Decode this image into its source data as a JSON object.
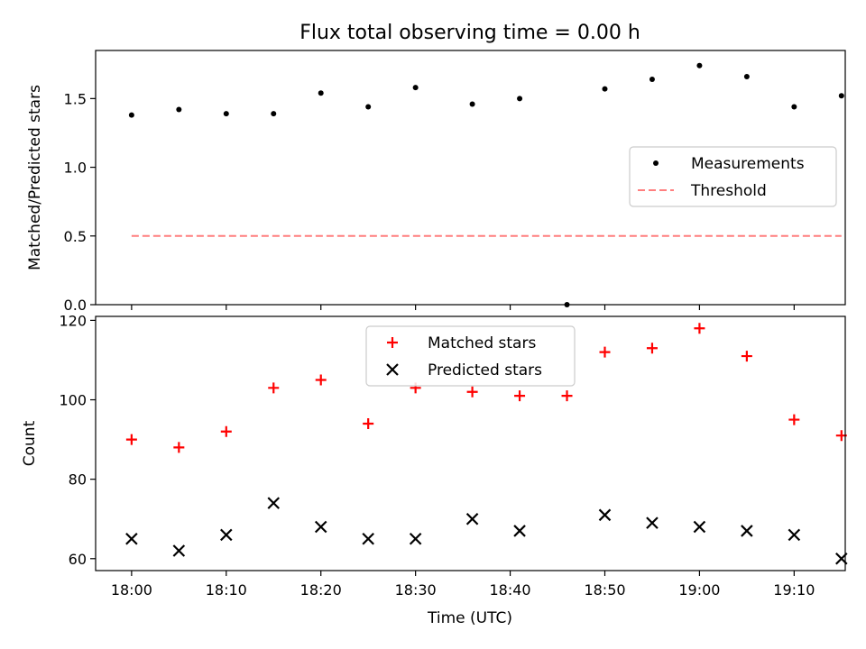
{
  "figure": {
    "title": "Flux total observing time = 0.00 h",
    "xlabel": "Time (UTC)",
    "xticks": [
      "18:00",
      "18:10",
      "18:20",
      "18:30",
      "18:40",
      "18:50",
      "19:00",
      "19:10"
    ]
  },
  "chart_data": [
    {
      "type": "scatter",
      "title": "Flux total observing time = 0.00 h",
      "ylabel": "Matched/Predicted stars",
      "ylim": [
        0.0,
        1.85
      ],
      "yticks": [
        "0.0",
        "0.5",
        "1.0",
        "1.5"
      ],
      "xlim_minutes": [
        -3.8,
        75.4
      ],
      "legend_position": "center-right",
      "series": [
        {
          "name": "Measurements",
          "kind": "scatter",
          "color": "#000000",
          "x": [
            "18:00",
            "18:05",
            "18:10",
            "18:15",
            "18:20",
            "18:25",
            "18:30",
            "18:36",
            "18:41",
            "18:46",
            "18:50",
            "18:55",
            "19:00",
            "19:05",
            "19:10",
            "19:15"
          ],
          "y": [
            1.38,
            1.42,
            1.39,
            1.39,
            1.54,
            1.44,
            1.58,
            1.46,
            1.5,
            0.0,
            1.57,
            1.64,
            1.74,
            1.66,
            1.44,
            1.52
          ]
        },
        {
          "name": "Threshold",
          "kind": "dashed-line",
          "color": "#ff7f7f",
          "x": [
            "18:00",
            "19:15"
          ],
          "y": [
            0.5,
            0.5
          ]
        }
      ]
    },
    {
      "type": "scatter",
      "xlabel": "Time (UTC)",
      "ylabel": "Count",
      "ylim": [
        57,
        121
      ],
      "yticks": [
        "60",
        "80",
        "100",
        "120"
      ],
      "xticks": [
        "18:00",
        "18:10",
        "18:20",
        "18:30",
        "18:40",
        "18:50",
        "19:00",
        "19:10"
      ],
      "legend_position": "top-center",
      "series": [
        {
          "name": "Matched stars",
          "marker": "plus",
          "color": "#ff0000",
          "x": [
            "18:00",
            "18:05",
            "18:10",
            "18:15",
            "18:20",
            "18:25",
            "18:30",
            "18:36",
            "18:41",
            "18:46",
            "18:50",
            "18:55",
            "19:00",
            "19:05",
            "19:10",
            "19:15"
          ],
          "y": [
            90,
            88,
            92,
            103,
            105,
            94,
            103,
            102,
            101,
            101,
            112,
            113,
            118,
            111,
            95,
            91
          ]
        },
        {
          "name": "Predicted stars",
          "marker": "x",
          "color": "#000000",
          "x": [
            "18:00",
            "18:05",
            "18:10",
            "18:15",
            "18:20",
            "18:25",
            "18:30",
            "18:36",
            "18:41",
            "18:50",
            "18:55",
            "19:00",
            "19:05",
            "19:10",
            "19:15"
          ],
          "y": [
            65,
            62,
            66,
            74,
            68,
            65,
            65,
            70,
            67,
            71,
            69,
            68,
            67,
            66,
            60
          ]
        }
      ]
    }
  ]
}
